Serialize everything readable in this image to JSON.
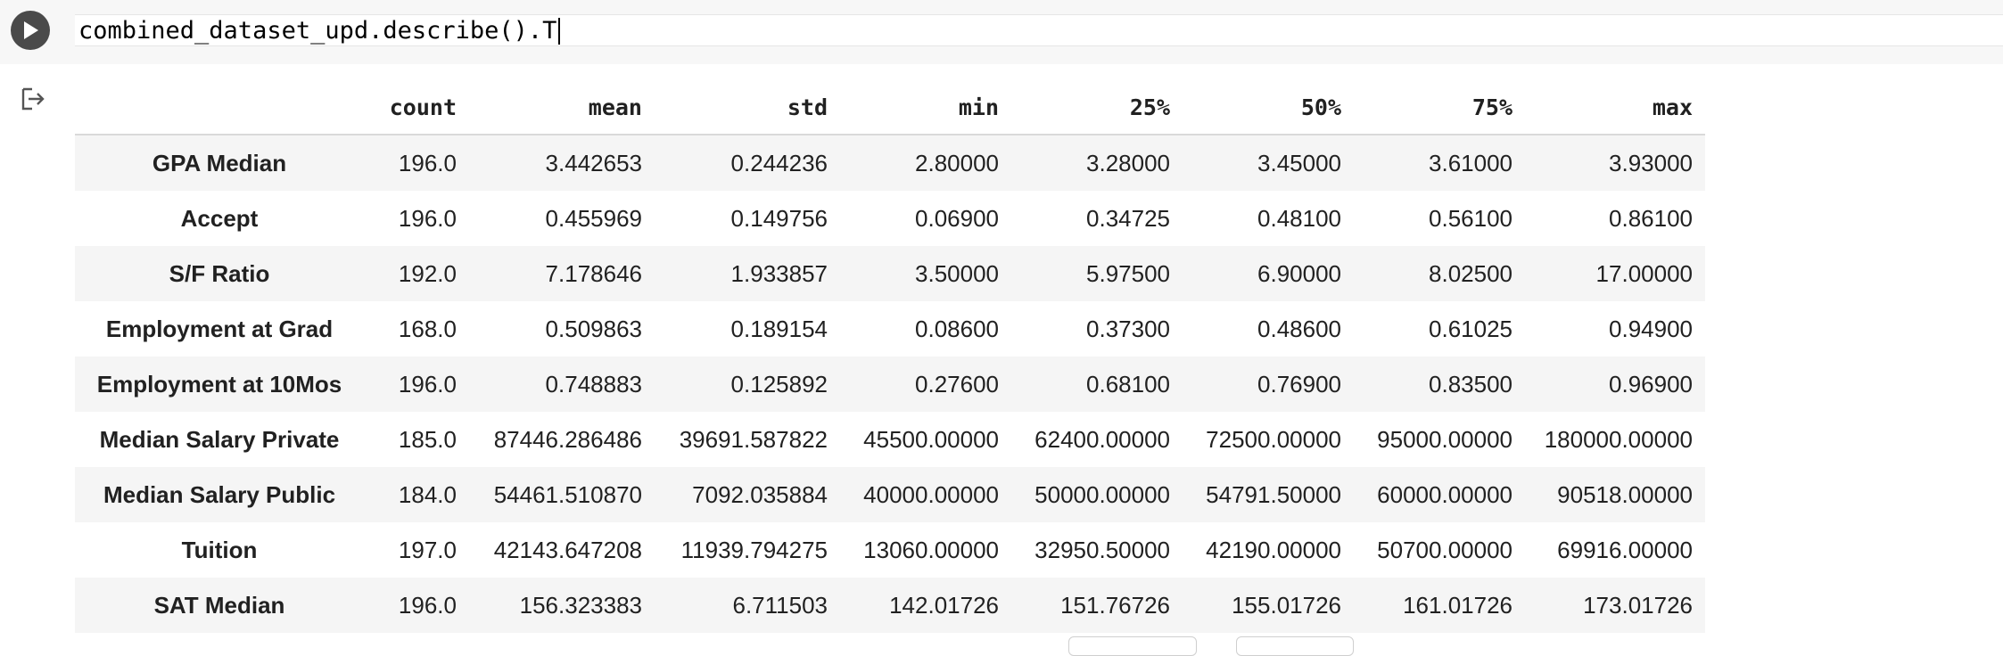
{
  "code_cell": {
    "code": "combined_dataset_upd.describe().T"
  },
  "icons": {
    "run": "play-icon",
    "output": "output-redirect-icon"
  },
  "table": {
    "columns": [
      "count",
      "mean",
      "std",
      "min",
      "25%",
      "50%",
      "75%",
      "max"
    ],
    "rows": [
      {
        "label": "GPA Median",
        "values": [
          "196.0",
          "3.442653",
          "0.244236",
          "2.80000",
          "3.28000",
          "3.45000",
          "3.61000",
          "3.93000"
        ]
      },
      {
        "label": "Accept",
        "values": [
          "196.0",
          "0.455969",
          "0.149756",
          "0.06900",
          "0.34725",
          "0.48100",
          "0.56100",
          "0.86100"
        ]
      },
      {
        "label": "S/F Ratio",
        "values": [
          "192.0",
          "7.178646",
          "1.933857",
          "3.50000",
          "5.97500",
          "6.90000",
          "8.02500",
          "17.00000"
        ]
      },
      {
        "label": "Employment at Grad",
        "values": [
          "168.0",
          "0.509863",
          "0.189154",
          "0.08600",
          "0.37300",
          "0.48600",
          "0.61025",
          "0.94900"
        ]
      },
      {
        "label": "Employment at 10Mos",
        "values": [
          "196.0",
          "0.748883",
          "0.125892",
          "0.27600",
          "0.68100",
          "0.76900",
          "0.83500",
          "0.96900"
        ]
      },
      {
        "label": "Median Salary Private",
        "values": [
          "185.0",
          "87446.286486",
          "39691.587822",
          "45500.00000",
          "62400.00000",
          "72500.00000",
          "95000.00000",
          "180000.00000"
        ]
      },
      {
        "label": "Median Salary Public",
        "values": [
          "184.0",
          "54461.510870",
          "7092.035884",
          "40000.00000",
          "50000.00000",
          "54791.50000",
          "60000.00000",
          "90518.00000"
        ]
      },
      {
        "label": "Tuition",
        "values": [
          "197.0",
          "42143.647208",
          "11939.794275",
          "13060.00000",
          "32950.50000",
          "42190.00000",
          "50700.00000",
          "69916.00000"
        ]
      },
      {
        "label": "SAT Median",
        "values": [
          "196.0",
          "156.323383",
          "6.711503",
          "142.01726",
          "151.76726",
          "155.01726",
          "161.01726",
          "173.01726"
        ]
      }
    ]
  }
}
